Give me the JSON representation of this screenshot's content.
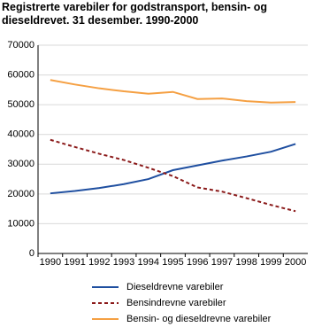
{
  "chart_data": {
    "type": "line",
    "title": "Registrerte varebiler for godstransport, bensin- og dieseldrevet. 31 desember. 1990-2000",
    "categories": [
      "1990",
      "1991",
      "1992",
      "1993",
      "1994",
      "1995",
      "1996",
      "1997",
      "1998",
      "1999",
      "2000"
    ],
    "series": [
      {
        "name": "Dieseldrevne varebiler",
        "color": "#1f4fa0",
        "style": "solid",
        "values": [
          20200,
          21000,
          22000,
          23300,
          25000,
          28000,
          29600,
          31200,
          32600,
          34200,
          36800
        ]
      },
      {
        "name": "Bensindrevne varebiler",
        "color": "#8b1a1a",
        "style": "dashed",
        "values": [
          38200,
          35800,
          33500,
          31400,
          28800,
          26000,
          22200,
          20800,
          18600,
          16300,
          14200
        ]
      },
      {
        "name": "Bensin- og dieseldrevne varebiler",
        "color": "#f5a043",
        "style": "solid",
        "values": [
          58300,
          56800,
          55500,
          54500,
          53700,
          54300,
          51900,
          52100,
          51200,
          50700,
          50900
        ]
      }
    ],
    "ylim": [
      0,
      70000
    ],
    "yticks": [
      0,
      10000,
      20000,
      30000,
      40000,
      50000,
      60000,
      70000
    ],
    "grid": true
  }
}
